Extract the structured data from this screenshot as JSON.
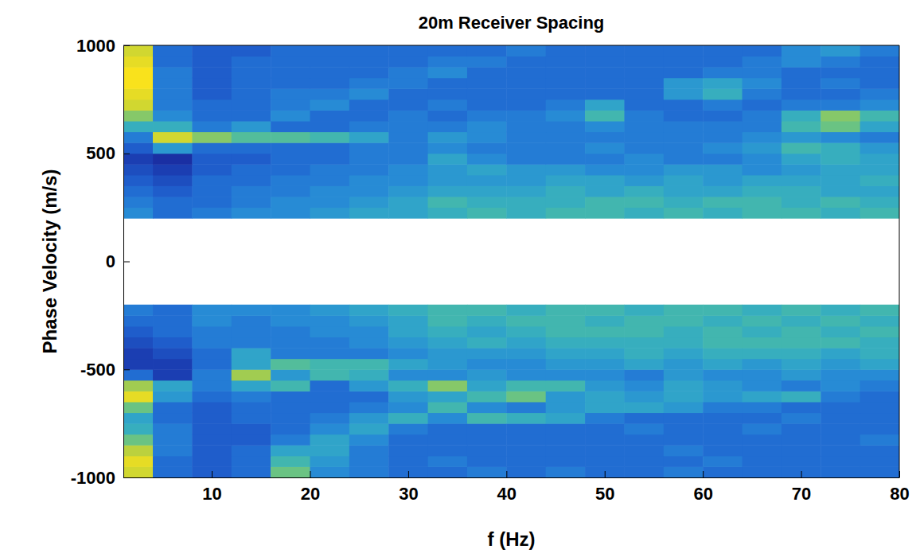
{
  "chart_data": {
    "type": "heatmap",
    "title": "20m Receiver Spacing",
    "x_label": "f (Hz)",
    "y_label": "Phase Velocity (m/s)",
    "xlim": [
      1,
      80
    ],
    "ylim": [
      -1000,
      1000
    ],
    "xticks": [
      10,
      20,
      30,
      40,
      50,
      60,
      70,
      80
    ],
    "yticks": [
      -1000,
      -500,
      0,
      500,
      1000
    ],
    "x_edges": [
      1,
      4,
      8,
      12,
      16,
      20,
      24,
      28,
      32,
      36,
      40,
      44,
      48,
      52,
      56,
      60,
      64,
      68,
      72,
      76,
      80
    ],
    "y_edges": [
      -1000,
      -950,
      -900,
      -850,
      -800,
      -750,
      -700,
      -650,
      -600,
      -550,
      -500,
      -450,
      -400,
      -350,
      -300,
      -250,
      -200,
      -150,
      -100,
      -50,
      0,
      50,
      100,
      150,
      200,
      250,
      300,
      350,
      400,
      450,
      500,
      550,
      600,
      650,
      700,
      750,
      800,
      850,
      900,
      950,
      1000
    ],
    "z": [
      [
        0.9,
        0.3,
        0.25,
        0.3,
        0.7,
        0.4,
        0.35,
        0.3,
        0.3,
        0.35,
        0.3,
        0.35,
        0.3,
        0.3,
        0.35,
        0.3,
        0.3,
        0.3,
        0.3,
        0.3
      ],
      [
        0.95,
        0.3,
        0.25,
        0.3,
        0.6,
        0.45,
        0.35,
        0.3,
        0.35,
        0.3,
        0.3,
        0.3,
        0.3,
        0.3,
        0.3,
        0.35,
        0.3,
        0.3,
        0.3,
        0.3
      ],
      [
        0.85,
        0.35,
        0.25,
        0.3,
        0.5,
        0.5,
        0.35,
        0.3,
        0.3,
        0.3,
        0.3,
        0.3,
        0.3,
        0.3,
        0.35,
        0.3,
        0.3,
        0.3,
        0.3,
        0.3
      ],
      [
        0.7,
        0.35,
        0.25,
        0.25,
        0.35,
        0.5,
        0.4,
        0.3,
        0.3,
        0.3,
        0.3,
        0.3,
        0.3,
        0.3,
        0.3,
        0.3,
        0.3,
        0.3,
        0.3,
        0.35
      ],
      [
        0.55,
        0.35,
        0.25,
        0.25,
        0.3,
        0.4,
        0.5,
        0.35,
        0.3,
        0.3,
        0.3,
        0.3,
        0.3,
        0.35,
        0.3,
        0.3,
        0.35,
        0.3,
        0.3,
        0.3
      ],
      [
        0.5,
        0.3,
        0.25,
        0.3,
        0.3,
        0.35,
        0.45,
        0.55,
        0.4,
        0.6,
        0.55,
        0.5,
        0.35,
        0.3,
        0.3,
        0.3,
        0.3,
        0.35,
        0.3,
        0.3
      ],
      [
        0.7,
        0.3,
        0.25,
        0.3,
        0.3,
        0.3,
        0.35,
        0.4,
        0.6,
        0.4,
        0.35,
        0.45,
        0.5,
        0.5,
        0.45,
        0.35,
        0.35,
        0.3,
        0.3,
        0.3
      ],
      [
        0.95,
        0.45,
        0.3,
        0.35,
        0.3,
        0.3,
        0.3,
        0.45,
        0.5,
        0.6,
        0.7,
        0.45,
        0.5,
        0.45,
        0.5,
        0.45,
        0.5,
        0.55,
        0.35,
        0.3
      ],
      [
        0.8,
        0.5,
        0.35,
        0.5,
        0.6,
        0.3,
        0.45,
        0.55,
        0.75,
        0.5,
        0.6,
        0.6,
        0.45,
        0.4,
        0.5,
        0.45,
        0.4,
        0.35,
        0.4,
        0.35
      ],
      [
        0.3,
        0.15,
        0.35,
        0.8,
        0.45,
        0.6,
        0.55,
        0.4,
        0.4,
        0.45,
        0.4,
        0.4,
        0.4,
        0.35,
        0.45,
        0.4,
        0.4,
        0.45,
        0.4,
        0.4
      ],
      [
        0.15,
        0.15,
        0.3,
        0.5,
        0.65,
        0.6,
        0.6,
        0.5,
        0.45,
        0.4,
        0.4,
        0.45,
        0.45,
        0.5,
        0.45,
        0.5,
        0.45,
        0.5,
        0.45,
        0.5
      ],
      [
        0.15,
        0.2,
        0.3,
        0.5,
        0.35,
        0.35,
        0.35,
        0.4,
        0.45,
        0.45,
        0.45,
        0.5,
        0.5,
        0.55,
        0.5,
        0.55,
        0.55,
        0.55,
        0.5,
        0.55
      ],
      [
        0.2,
        0.25,
        0.35,
        0.35,
        0.35,
        0.35,
        0.4,
        0.45,
        0.5,
        0.55,
        0.5,
        0.55,
        0.55,
        0.55,
        0.55,
        0.6,
        0.6,
        0.6,
        0.6,
        0.55
      ],
      [
        0.25,
        0.3,
        0.35,
        0.35,
        0.35,
        0.4,
        0.4,
        0.5,
        0.55,
        0.5,
        0.55,
        0.6,
        0.6,
        0.6,
        0.55,
        0.6,
        0.55,
        0.6,
        0.55,
        0.6
      ],
      [
        0.3,
        0.3,
        0.4,
        0.35,
        0.4,
        0.4,
        0.45,
        0.5,
        0.6,
        0.55,
        0.6,
        0.6,
        0.55,
        0.6,
        0.6,
        0.55,
        0.6,
        0.55,
        0.6,
        0.55
      ],
      [
        0.35,
        0.3,
        0.4,
        0.4,
        0.4,
        0.45,
        0.5,
        0.55,
        0.6,
        0.6,
        0.55,
        0.6,
        0.6,
        0.55,
        0.6,
        0.6,
        0.55,
        0.6,
        0.55,
        0.6
      ],
      null,
      null,
      null,
      null,
      null,
      null,
      null,
      null,
      [
        0.4,
        0.3,
        0.35,
        0.4,
        0.4,
        0.45,
        0.5,
        0.5,
        0.55,
        0.6,
        0.55,
        0.6,
        0.6,
        0.55,
        0.6,
        0.55,
        0.6,
        0.6,
        0.55,
        0.6
      ],
      [
        0.35,
        0.3,
        0.3,
        0.35,
        0.4,
        0.4,
        0.45,
        0.5,
        0.6,
        0.55,
        0.55,
        0.55,
        0.6,
        0.6,
        0.55,
        0.6,
        0.6,
        0.55,
        0.6,
        0.55
      ],
      [
        0.3,
        0.25,
        0.3,
        0.35,
        0.35,
        0.4,
        0.4,
        0.45,
        0.5,
        0.5,
        0.5,
        0.55,
        0.5,
        0.55,
        0.5,
        0.5,
        0.55,
        0.55,
        0.5,
        0.5
      ],
      [
        0.25,
        0.2,
        0.3,
        0.3,
        0.35,
        0.35,
        0.4,
        0.4,
        0.45,
        0.45,
        0.45,
        0.5,
        0.5,
        0.45,
        0.5,
        0.45,
        0.5,
        0.5,
        0.5,
        0.55
      ],
      [
        0.2,
        0.15,
        0.25,
        0.3,
        0.3,
        0.35,
        0.35,
        0.4,
        0.45,
        0.5,
        0.45,
        0.45,
        0.4,
        0.4,
        0.45,
        0.45,
        0.4,
        0.45,
        0.5,
        0.5
      ],
      [
        0.15,
        0.1,
        0.25,
        0.25,
        0.3,
        0.3,
        0.35,
        0.35,
        0.5,
        0.4,
        0.35,
        0.35,
        0.35,
        0.4,
        0.35,
        0.35,
        0.4,
        0.5,
        0.55,
        0.5
      ],
      [
        0.25,
        0.45,
        0.3,
        0.3,
        0.3,
        0.3,
        0.35,
        0.35,
        0.4,
        0.35,
        0.35,
        0.35,
        0.4,
        0.35,
        0.35,
        0.4,
        0.45,
        0.6,
        0.55,
        0.45
      ],
      [
        0.35,
        0.9,
        0.75,
        0.65,
        0.65,
        0.6,
        0.5,
        0.35,
        0.45,
        0.4,
        0.35,
        0.35,
        0.35,
        0.35,
        0.35,
        0.35,
        0.4,
        0.45,
        0.4,
        0.35
      ],
      [
        0.55,
        0.55,
        0.35,
        0.45,
        0.3,
        0.3,
        0.35,
        0.35,
        0.35,
        0.4,
        0.35,
        0.35,
        0.4,
        0.35,
        0.35,
        0.35,
        0.35,
        0.6,
        0.7,
        0.5
      ],
      [
        0.75,
        0.4,
        0.3,
        0.3,
        0.4,
        0.3,
        0.3,
        0.35,
        0.3,
        0.35,
        0.35,
        0.4,
        0.6,
        0.35,
        0.3,
        0.3,
        0.35,
        0.55,
        0.75,
        0.6
      ],
      [
        0.9,
        0.35,
        0.3,
        0.3,
        0.35,
        0.4,
        0.3,
        0.3,
        0.35,
        0.3,
        0.3,
        0.35,
        0.5,
        0.3,
        0.3,
        0.35,
        0.3,
        0.35,
        0.35,
        0.4
      ],
      [
        0.95,
        0.35,
        0.25,
        0.3,
        0.35,
        0.35,
        0.4,
        0.3,
        0.3,
        0.3,
        0.3,
        0.3,
        0.3,
        0.3,
        0.45,
        0.55,
        0.35,
        0.3,
        0.3,
        0.35
      ],
      [
        1.0,
        0.35,
        0.25,
        0.3,
        0.3,
        0.3,
        0.35,
        0.35,
        0.3,
        0.3,
        0.3,
        0.3,
        0.3,
        0.3,
        0.45,
        0.5,
        0.4,
        0.3,
        0.35,
        0.3
      ],
      [
        1.0,
        0.35,
        0.25,
        0.3,
        0.3,
        0.3,
        0.3,
        0.35,
        0.4,
        0.3,
        0.3,
        0.3,
        0.3,
        0.3,
        0.3,
        0.35,
        0.35,
        0.3,
        0.3,
        0.3
      ],
      [
        0.95,
        0.3,
        0.25,
        0.3,
        0.3,
        0.3,
        0.3,
        0.3,
        0.35,
        0.35,
        0.3,
        0.3,
        0.3,
        0.3,
        0.3,
        0.3,
        0.35,
        0.4,
        0.35,
        0.3
      ],
      [
        0.9,
        0.3,
        0.25,
        0.25,
        0.3,
        0.3,
        0.3,
        0.3,
        0.3,
        0.3,
        0.35,
        0.3,
        0.3,
        0.3,
        0.3,
        0.3,
        0.3,
        0.4,
        0.45,
        0.35
      ]
    ]
  }
}
